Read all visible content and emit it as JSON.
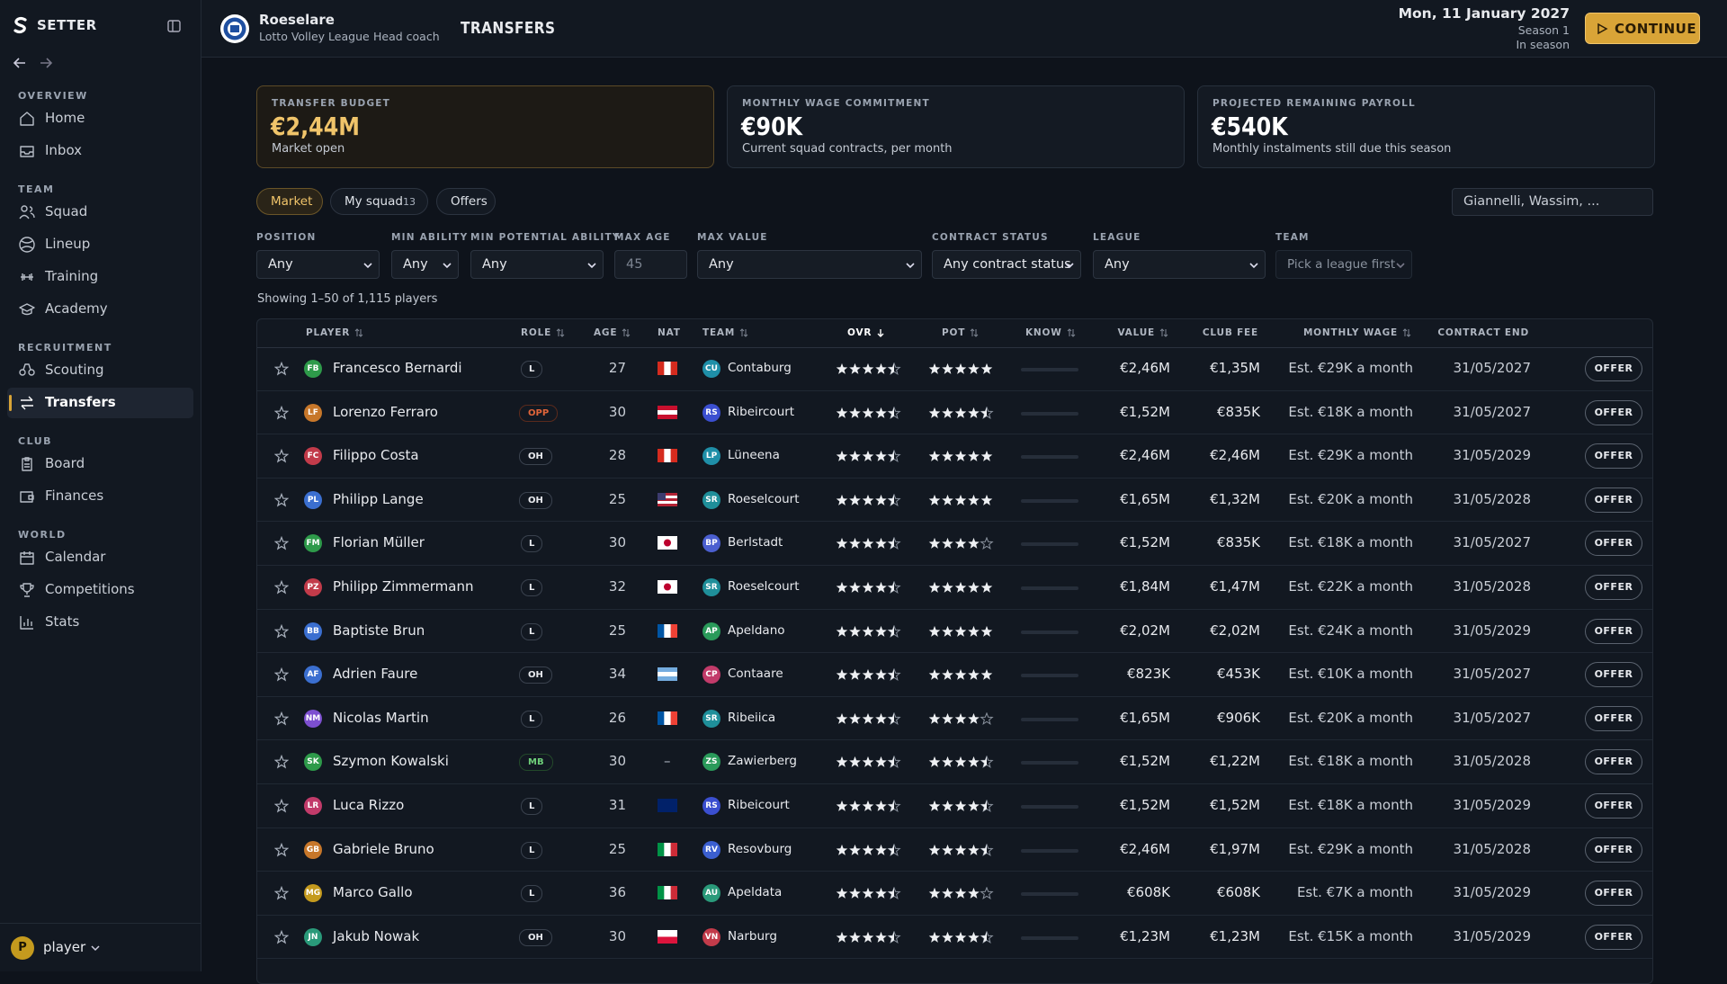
{
  "sidebar": {
    "brand": "SETTER",
    "sections": [
      {
        "title": "OVERVIEW",
        "items": [
          {
            "label": "Home",
            "icon": "home"
          },
          {
            "label": "Inbox",
            "icon": "inbox"
          }
        ]
      },
      {
        "title": "TEAM",
        "items": [
          {
            "label": "Squad",
            "icon": "users"
          },
          {
            "label": "Lineup",
            "icon": "ball"
          },
          {
            "label": "Training",
            "icon": "dumbbell"
          },
          {
            "label": "Academy",
            "icon": "cap"
          }
        ]
      },
      {
        "title": "RECRUITMENT",
        "items": [
          {
            "label": "Scouting",
            "icon": "bino"
          },
          {
            "label": "Transfers",
            "icon": "swap",
            "active": true
          }
        ]
      },
      {
        "title": "CLUB",
        "items": [
          {
            "label": "Board",
            "icon": "clip"
          },
          {
            "label": "Finances",
            "icon": "wallet"
          }
        ]
      },
      {
        "title": "WORLD",
        "items": [
          {
            "label": "Calendar",
            "icon": "cal"
          },
          {
            "label": "Competitions",
            "icon": "trophy"
          },
          {
            "label": "Stats",
            "icon": "stats"
          }
        ]
      }
    ],
    "user": {
      "initial": "P",
      "name": "player"
    }
  },
  "header": {
    "club": "Roeselare",
    "league": "Lotto Volley League",
    "role": "Head coach",
    "page": "TRANSFERS",
    "date": "Mon, 11 January 2027",
    "season": "Season 1",
    "phase": "In season",
    "continue": "CONTINUE"
  },
  "cards": [
    {
      "label": "TRANSFER BUDGET",
      "value": "€2,44M",
      "note": "Market open",
      "highlight": true
    },
    {
      "label": "MONTHLY WAGE COMMITMENT",
      "value": "€90K",
      "note": "Current squad contracts, per month"
    },
    {
      "label": "PROJECTED REMAINING PAYROLL",
      "value": "€540K",
      "note": "Monthly instalments still due this season"
    }
  ],
  "tabs": [
    {
      "label": "Market",
      "active": true
    },
    {
      "label": "My squad",
      "count": 13
    },
    {
      "label": "Offers"
    }
  ],
  "search": "Giannelli, Wassim, ...",
  "filters": [
    {
      "label": "POSITION",
      "value": "Any"
    },
    {
      "label": "MIN ABILITY",
      "value": "Any"
    },
    {
      "label": "MIN POTENTIAL ABILITY",
      "value": "Any"
    },
    {
      "label": "MAX AGE",
      "placeholder": 45
    },
    {
      "label": "MAX VALUE",
      "value": "Any"
    },
    {
      "label": "CONTRACT STATUS",
      "value": "Any contract status"
    },
    {
      "label": "LEAGUE",
      "value": "Any"
    },
    {
      "label": "TEAM",
      "placeholder": "Pick a league first",
      "disabled": true
    }
  ],
  "showing": "Showing 1–50 of 1,115 players",
  "table": {
    "rating_max": 5,
    "offer_label": "OFFER",
    "columns": [
      {
        "label": "PLAYER",
        "sort": "both"
      },
      {
        "label": "ROLE",
        "sort": "both"
      },
      {
        "label": "AGE",
        "sort": "both"
      },
      {
        "label": "NAT"
      },
      {
        "label": "TEAM",
        "sort": "both"
      },
      {
        "label": "OVR",
        "sort": "desc"
      },
      {
        "label": "POT",
        "sort": "both"
      },
      {
        "label": "KNOW",
        "sort": "both"
      },
      {
        "label": "VALUE",
        "sort": "both"
      },
      {
        "label": "CLUB FEE"
      },
      {
        "label": "MONTHLY WAGE",
        "sort": "both"
      },
      {
        "label": "CONTRACT END"
      }
    ],
    "rows": [
      {
        "initials": "FB",
        "avatar": "#2e9a4a",
        "name": "Francesco Bernardi",
        "role": "L",
        "age": 27,
        "flag": {
          "dir": "v",
          "colors": [
            "#d52b1e",
            "#ffffff",
            "#d52b1e"
          ]
        },
        "team_initials": "CU",
        "team_color": "#1f8fa8",
        "team": "Contaburg",
        "ovr": 4.5,
        "pot": 5,
        "value": "€2,46M",
        "club_fee": "€1,35M",
        "wage": "Est. €29K a month",
        "contract_end": "31/05/2027"
      },
      {
        "initials": "LF",
        "avatar": "#c7772a",
        "name": "Lorenzo Ferraro",
        "role": "OPP",
        "age": 30,
        "flag": {
          "dir": "h",
          "colors": [
            "#c8102e",
            "#ffffff",
            "#c8102e"
          ]
        },
        "team_initials": "RS",
        "team_color": "#3b4fd0",
        "team": "Ribeircourt",
        "ovr": 4.5,
        "pot": 4.5,
        "value": "€1,52M",
        "club_fee": "€835K",
        "wage": "Est. €18K a month",
        "contract_end": "31/05/2027"
      },
      {
        "initials": "FC",
        "avatar": "#c23b4a",
        "name": "Filippo Costa",
        "role": "OH",
        "age": 28,
        "flag": {
          "dir": "v",
          "colors": [
            "#d52b1e",
            "#ffffff",
            "#d52b1e"
          ]
        },
        "team_initials": "LP",
        "team_color": "#1f8fa8",
        "team": "Lüneena",
        "ovr": 4.5,
        "pot": 5,
        "value": "€2,46M",
        "club_fee": "€2,46M",
        "wage": "Est. €29K a month",
        "contract_end": "31/05/2029"
      },
      {
        "initials": "PL",
        "avatar": "#3b6fd0",
        "name": "Philipp Lange",
        "role": "OH",
        "age": 25,
        "flag": {
          "dir": "h",
          "colors": [
            "#b22234",
            "#ffffff",
            "#b22234",
            "#ffffff",
            "#b22234"
          ],
          "canton": "#3c3b6e"
        },
        "team_initials": "SR",
        "team_color": "#1f8f9a",
        "team": "Roeselcourt",
        "ovr": 4.5,
        "pot": 5,
        "value": "€1,65M",
        "club_fee": "€1,32M",
        "wage": "Est. €20K a month",
        "contract_end": "31/05/2028"
      },
      {
        "initials": "FM",
        "avatar": "#2e9a4a",
        "name": "Florian Müller",
        "role": "L",
        "age": 30,
        "flag": {
          "dir": "h",
          "colors": [
            "#ffffff"
          ],
          "dot": "#bc002d"
        },
        "team_initials": "BP",
        "team_color": "#4b5fd0",
        "team": "Berlstadt",
        "ovr": 4.5,
        "pot": 4,
        "value": "€1,52M",
        "club_fee": "€835K",
        "wage": "Est. €18K a month",
        "contract_end": "31/05/2027"
      },
      {
        "initials": "PZ",
        "avatar": "#c23b4a",
        "name": "Philipp Zimmermann",
        "role": "L",
        "age": 32,
        "flag": {
          "dir": "h",
          "colors": [
            "#ffffff"
          ],
          "dot": "#bc002d"
        },
        "team_initials": "SR",
        "team_color": "#1f8f9a",
        "team": "Roeselcourt",
        "ovr": 4.5,
        "pot": 5,
        "value": "€1,84M",
        "club_fee": "€1,47M",
        "wage": "Est. €22K a month",
        "contract_end": "31/05/2028"
      },
      {
        "initials": "BB",
        "avatar": "#3b6fd0",
        "name": "Baptiste Brun",
        "role": "L",
        "age": 25,
        "flag": {
          "dir": "v",
          "colors": [
            "#0055a4",
            "#ffffff",
            "#ef4135"
          ]
        },
        "team_initials": "AP",
        "team_color": "#2a9a5a",
        "team": "Apeldano",
        "ovr": 4.5,
        "pot": 5,
        "value": "€2,02M",
        "club_fee": "€2,02M",
        "wage": "Est. €24K a month",
        "contract_end": "31/05/2029"
      },
      {
        "initials": "AF",
        "avatar": "#3b6fd0",
        "name": "Adrien Faure",
        "role": "OH",
        "age": 34,
        "flag": {
          "dir": "h",
          "colors": [
            "#74acdf",
            "#ffffff",
            "#74acdf"
          ]
        },
        "team_initials": "CP",
        "team_color": "#c23b6a",
        "team": "Contaare",
        "ovr": 4.5,
        "pot": 5,
        "value": "€823K",
        "club_fee": "€453K",
        "wage": "Est. €10K a month",
        "contract_end": "31/05/2027"
      },
      {
        "initials": "NM",
        "avatar": "#7d4fd0",
        "name": "Nicolas Martin",
        "role": "L",
        "age": 26,
        "flag": {
          "dir": "v",
          "colors": [
            "#0055a4",
            "#ffffff",
            "#ef4135"
          ]
        },
        "team_initials": "SR",
        "team_color": "#1f8f9a",
        "team": "Ribeiica",
        "ovr": 4.5,
        "pot": 4,
        "value": "€1,65M",
        "club_fee": "€906K",
        "wage": "Est. €20K a month",
        "contract_end": "31/05/2027"
      },
      {
        "initials": "SK",
        "avatar": "#2e9a4a",
        "name": "Szymon Kowalski",
        "role": "MB",
        "age": 30,
        "nat_text": "–",
        "team_initials": "ZS",
        "team_color": "#2a9a5a",
        "team": "Zawierberg",
        "ovr": 4.5,
        "pot": 4.5,
        "value": "€1,52M",
        "club_fee": "€1,22M",
        "wage": "Est. €18K a month",
        "contract_end": "31/05/2028"
      },
      {
        "initials": "LR",
        "avatar": "#c23b6a",
        "name": "Luca Rizzo",
        "role": "L",
        "age": 31,
        "flag": {
          "dir": "h",
          "colors": [
            "#012169"
          ]
        },
        "team_initials": "RS",
        "team_color": "#3b4fd0",
        "team": "Ribeicourt",
        "ovr": 4.5,
        "pot": 4.5,
        "value": "€1,52M",
        "club_fee": "€1,52M",
        "wage": "Est. €18K a month",
        "contract_end": "31/05/2029"
      },
      {
        "initials": "GB",
        "avatar": "#c7772a",
        "name": "Gabriele Bruno",
        "role": "L",
        "age": 25,
        "flag": {
          "dir": "v",
          "colors": [
            "#009246",
            "#ffffff",
            "#ce2b37"
          ]
        },
        "team_initials": "RV",
        "team_color": "#3b5fd0",
        "team": "Resovburg",
        "ovr": 4.5,
        "pot": 4.5,
        "value": "€2,46M",
        "club_fee": "€1,97M",
        "wage": "Est. €29K a month",
        "contract_end": "31/05/2028"
      },
      {
        "initials": "MG",
        "avatar": "#c49a1e",
        "name": "Marco Gallo",
        "role": "L",
        "age": 36,
        "flag": {
          "dir": "v",
          "colors": [
            "#009246",
            "#ffffff",
            "#ce2b37"
          ]
        },
        "team_initials": "AU",
        "team_color": "#2a9a7a",
        "team": "Apeldata",
        "ovr": 4.5,
        "pot": 4,
        "value": "€608K",
        "club_fee": "€608K",
        "wage": "Est. €7K a month",
        "contract_end": "31/05/2029"
      },
      {
        "initials": "JN",
        "avatar": "#2a9a7a",
        "name": "Jakub Nowak",
        "role": "OH",
        "age": 30,
        "flag": {
          "dir": "h",
          "colors": [
            "#ffffff",
            "#dc143c"
          ]
        },
        "team_initials": "VN",
        "team_color": "#c23b4a",
        "team": "Narburg",
        "ovr": 4.5,
        "pot": 4.5,
        "value": "€1,23M",
        "club_fee": "€1,23M",
        "wage": "Est. €15K a month",
        "contract_end": "31/05/2029"
      }
    ]
  }
}
